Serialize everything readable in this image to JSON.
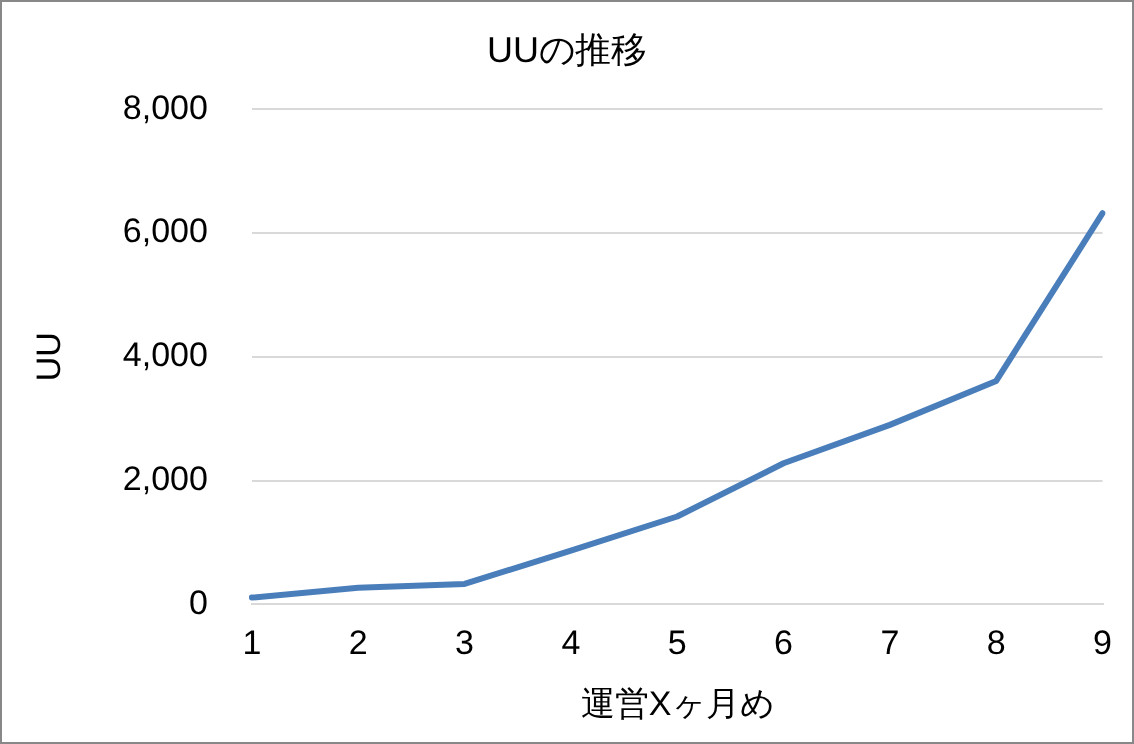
{
  "chart_data": {
    "type": "line",
    "title": "UUの推移",
    "xlabel": "運営Xヶ月め",
    "ylabel": "UU",
    "categories": [
      "1",
      "2",
      "3",
      "4",
      "5",
      "6",
      "7",
      "8",
      "9"
    ],
    "series": [
      {
        "color": "#4a7ebb",
        "values": [
          110,
          270,
          330,
          870,
          1420,
          2280,
          2900,
          3610,
          6320
        ]
      }
    ],
    "ylim": [
      0,
      8000
    ],
    "yticks": [
      {
        "value": 0,
        "label": "0"
      },
      {
        "value": 2000,
        "label": "2,000"
      },
      {
        "value": 4000,
        "label": "4,000"
      },
      {
        "value": 6000,
        "label": "6,000"
      },
      {
        "value": 8000,
        "label": "8,000"
      }
    ],
    "grid": "y",
    "legend": false,
    "marker": "none",
    "line_style": "solid"
  }
}
